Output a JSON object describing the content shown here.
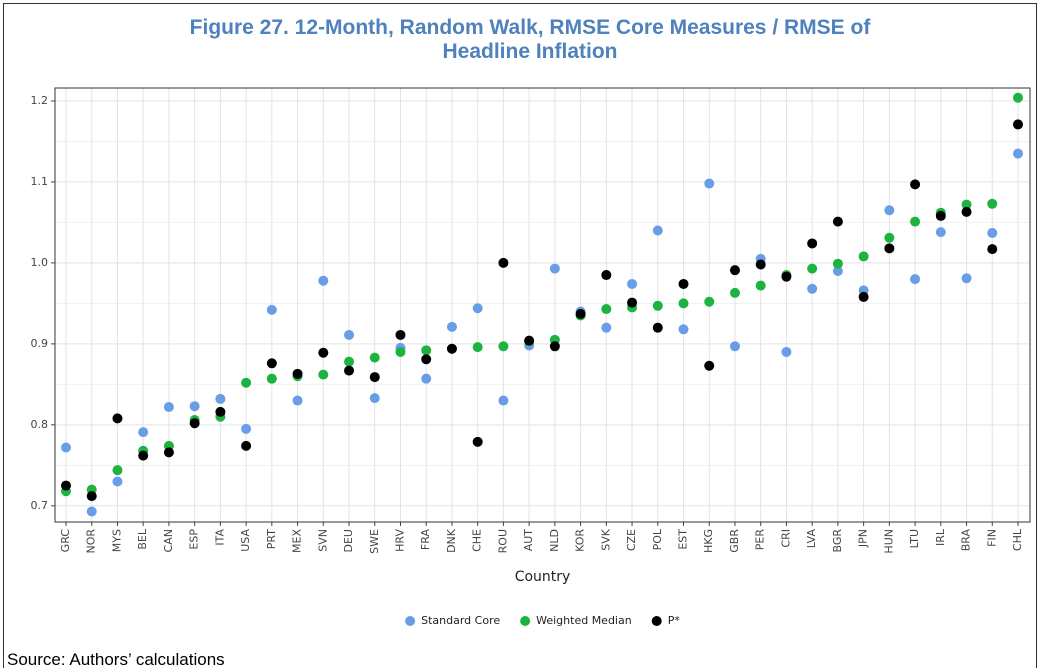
{
  "chart_data": {
    "type": "scatter",
    "title": "Figure 27. 12-Month, Random Walk, RMSE Core Measures / RMSE of Headline Inflation",
    "x_label": "Country",
    "categories": [
      "GRC",
      "NOR",
      "MYS",
      "BEL",
      "CAN",
      "ESP",
      "ITA",
      "USA",
      "PRT",
      "MEX",
      "SVN",
      "DEU",
      "SWE",
      "HRV",
      "FRA",
      "DNK",
      "CHE",
      "ROU",
      "AUT",
      "NLD",
      "KOR",
      "SVK",
      "CZE",
      "POL",
      "EST",
      "HKG",
      "GBR",
      "PER",
      "CRI",
      "LVA",
      "BGR",
      "JPN",
      "HUN",
      "LTU",
      "IRL",
      "BRA",
      "FIN",
      "CHL"
    ],
    "series": [
      {
        "name": "Standard Core",
        "color": "#6a9de8",
        "values": [
          0.772,
          0.693,
          0.73,
          0.791,
          0.822,
          0.823,
          0.832,
          0.795,
          0.942,
          0.83,
          0.978,
          0.911,
          0.833,
          0.895,
          0.857,
          0.921,
          0.944,
          0.83,
          0.898,
          0.993,
          0.94,
          0.92,
          0.974,
          1.04,
          0.918,
          1.098,
          0.897,
          1.005,
          0.89,
          0.968,
          0.99,
          0.966,
          1.065,
          0.98,
          1.038,
          0.981,
          1.037,
          1.135
        ]
      },
      {
        "name": "Weighted Median",
        "color": "#1db341",
        "values": [
          0.718,
          0.72,
          0.744,
          0.768,
          0.774,
          0.806,
          0.81,
          0.852,
          0.857,
          0.86,
          0.862,
          0.878,
          0.883,
          0.89,
          0.892,
          0.894,
          0.896,
          0.897,
          0.903,
          0.905,
          0.935,
          0.943,
          0.945,
          0.947,
          0.95,
          0.952,
          0.963,
          0.972,
          0.985,
          0.993,
          0.999,
          1.008,
          1.031,
          1.051,
          1.062,
          1.072,
          1.073,
          1.204
        ]
      },
      {
        "name": "P*",
        "color": "#000000",
        "values": [
          0.725,
          0.712,
          0.808,
          0.762,
          0.766,
          0.802,
          0.816,
          0.774,
          0.876,
          0.863,
          0.889,
          0.867,
          0.859,
          0.911,
          0.881,
          0.894,
          0.779,
          1.0,
          0.904,
          0.897,
          0.937,
          0.985,
          0.951,
          0.92,
          0.974,
          0.873,
          0.991,
          0.998,
          0.983,
          1.024,
          1.051,
          0.958,
          1.018,
          1.097,
          1.058,
          1.063,
          1.017,
          1.171
        ]
      }
    ],
    "ylim": [
      0.68,
      1.216
    ],
    "yticks": [
      0.7,
      0.8,
      0.9,
      {
        "value": 1,
        "label": "1.0"
      },
      1.1,
      1.2
    ],
    "grid": true,
    "legend": "bottom"
  },
  "source": "Source: Authors’ calculations"
}
